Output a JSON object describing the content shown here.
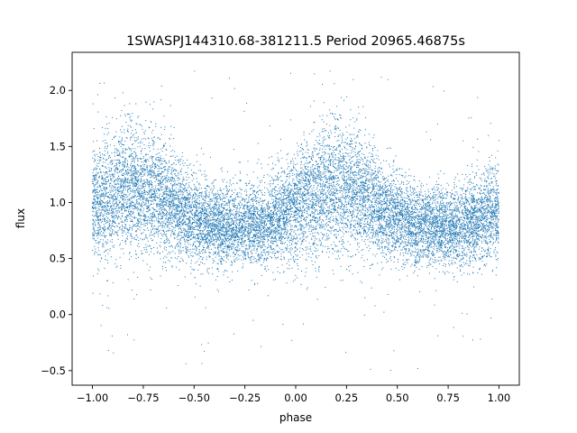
{
  "chart_data": {
    "type": "scatter",
    "title": "1SWASPJ144310.68-381211.5 Period 20965.46875s",
    "xlabel": "phase",
    "ylabel": "flux",
    "xlim": [
      -1.1,
      1.1
    ],
    "ylim": [
      -0.63,
      2.34
    ],
    "grid": false,
    "legend": "none",
    "series_color": "#1f77b4",
    "x_ticks": [
      {
        "value": -1.0,
        "label": "−1.00"
      },
      {
        "value": -0.75,
        "label": "−0.75"
      },
      {
        "value": -0.5,
        "label": "−0.50"
      },
      {
        "value": -0.25,
        "label": "−0.25"
      },
      {
        "value": 0.0,
        "label": "0.00"
      },
      {
        "value": 0.25,
        "label": "0.25"
      },
      {
        "value": 0.5,
        "label": "0.50"
      },
      {
        "value": 0.75,
        "label": "0.75"
      },
      {
        "value": 1.0,
        "label": "1.00"
      }
    ],
    "y_ticks": [
      {
        "value": -0.5,
        "label": "−0.5"
      },
      {
        "value": 0.0,
        "label": "0.0"
      },
      {
        "value": 0.5,
        "label": "0.5"
      },
      {
        "value": 1.0,
        "label": "1.0"
      },
      {
        "value": 1.5,
        "label": "1.5"
      },
      {
        "value": 2.0,
        "label": "2.0"
      }
    ],
    "phase_range": [
      -1.0,
      1.0
    ],
    "flux_range": [
      -0.5,
      2.2
    ],
    "baseline_flux": 0.78,
    "peak_flux": [
      {
        "phase": -0.8,
        "flux": 1.13
      },
      {
        "phase": 0.2,
        "flux": 1.13
      }
    ],
    "typical_scatter": 0.2
  }
}
